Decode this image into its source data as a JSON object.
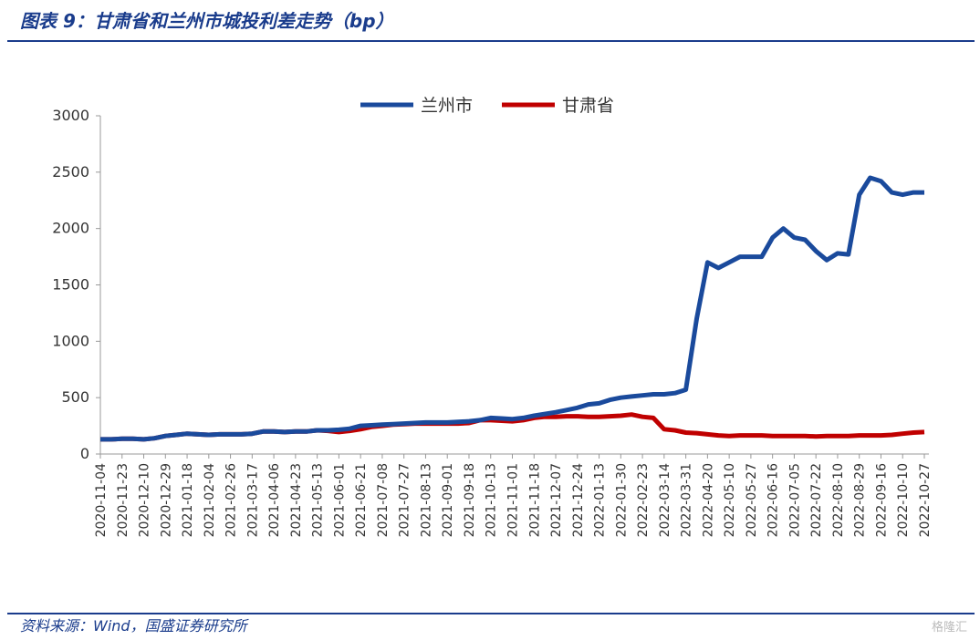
{
  "title": "图表 9：甘肃省和兰州市城投利差走势（bp）",
  "source": "资料来源：Wind，国盛证券研究所",
  "watermark": "格隆汇",
  "chart_data": {
    "type": "line",
    "categories": [
      "2020-11-04",
      null,
      "2020-11-23",
      null,
      "2020-12-10",
      null,
      "2020-12-29",
      null,
      "2021-01-18",
      null,
      "2021-02-04",
      null,
      "2021-02-26",
      null,
      "2021-03-17",
      null,
      "2021-04-06",
      null,
      "2021-04-23",
      null,
      "2021-05-13",
      null,
      "2021-06-01",
      null,
      "2021-06-21",
      null,
      "2021-07-08",
      null,
      "2021-07-27",
      null,
      "2021-08-13",
      null,
      "2021-09-01",
      null,
      "2021-09-18",
      null,
      "2021-10-13",
      null,
      "2021-11-01",
      null,
      "2021-11-18",
      null,
      "2021-12-07",
      null,
      "2021-12-24",
      null,
      "2022-01-13",
      null,
      "2022-01-30",
      null,
      "2022-02-23",
      null,
      "2022-03-14",
      null,
      "2022-03-31",
      null,
      "2022-04-20",
      null,
      "2022-05-10",
      null,
      "2022-05-27",
      null,
      "2022-06-16",
      null,
      "2022-07-05",
      null,
      "2022-07-22",
      null,
      "2022-08-10",
      null,
      "2022-08-29",
      null,
      "2022-09-16",
      null,
      "2022-10-10",
      null,
      "2022-10-27"
    ],
    "series": [
      {
        "name": "兰州市",
        "color": "#1a4a9c",
        "values": [
          130,
          130,
          135,
          135,
          130,
          140,
          160,
          170,
          180,
          175,
          170,
          175,
          175,
          175,
          180,
          200,
          200,
          195,
          200,
          200,
          210,
          210,
          215,
          225,
          250,
          255,
          260,
          265,
          270,
          275,
          280,
          280,
          280,
          285,
          290,
          300,
          320,
          315,
          310,
          320,
          340,
          355,
          370,
          390,
          410,
          440,
          450,
          480,
          500,
          510,
          520,
          530,
          530,
          540,
          570,
          1200,
          1700,
          1650,
          1700,
          1750,
          1750,
          1750,
          1920,
          2000,
          1920,
          1900,
          1800,
          1720,
          1780,
          1770,
          2300,
          2450,
          2420,
          2320,
          2300,
          2320,
          2320
        ]
      },
      {
        "name": "甘肃省",
        "color": "#c00000",
        "values": [
          130,
          130,
          135,
          135,
          130,
          140,
          160,
          170,
          180,
          175,
          170,
          175,
          175,
          175,
          180,
          200,
          200,
          195,
          200,
          200,
          210,
          205,
          195,
          205,
          220,
          240,
          250,
          260,
          265,
          270,
          270,
          270,
          270,
          270,
          275,
          300,
          300,
          295,
          290,
          300,
          320,
          330,
          330,
          335,
          335,
          330,
          330,
          335,
          340,
          350,
          330,
          320,
          220,
          210,
          190,
          185,
          175,
          165,
          160,
          165,
          165,
          165,
          160,
          160,
          160,
          160,
          155,
          160,
          160,
          160,
          165,
          165,
          165,
          170,
          180,
          190,
          195
        ]
      }
    ],
    "ylim": [
      0,
      3000
    ],
    "yticks": [
      0,
      500,
      1000,
      1500,
      2000,
      2500,
      3000
    ],
    "legend": "top"
  }
}
